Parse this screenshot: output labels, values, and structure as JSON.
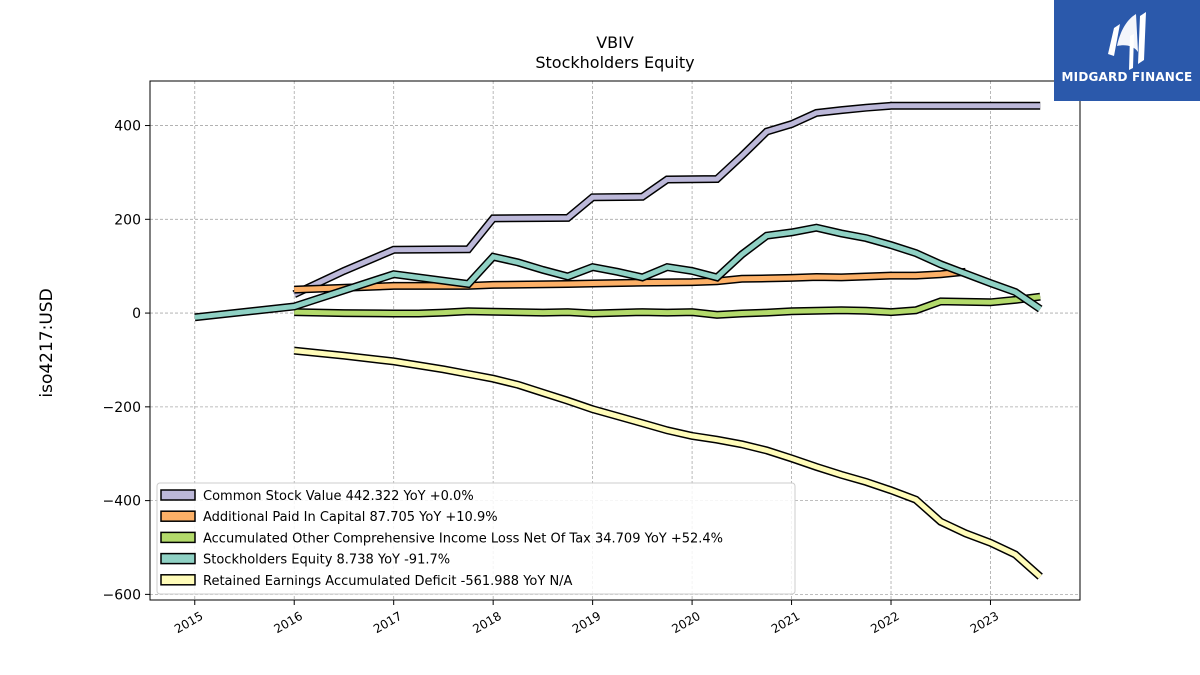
{
  "chart_data": {
    "type": "line",
    "title": "VBIV",
    "subtitle": "Stockholders  Equity",
    "xlabel": "",
    "ylabel": "iso4217:USD",
    "xlim": [
      2014.55,
      2023.9
    ],
    "ylim": [
      -612,
      495
    ],
    "x_ticks": [
      2015,
      2016,
      2017,
      2018,
      2019,
      2020,
      2021,
      2022,
      2023
    ],
    "y_ticks": [
      400,
      200,
      0,
      -200,
      -400,
      -600
    ],
    "y_tick_labels": [
      "400",
      "200",
      "0",
      "−200",
      "−400",
      "−600"
    ],
    "grid": true,
    "legend_position": "lower-left",
    "series": [
      {
        "name": "Common Stock Value  442.322 YoY +0.0%",
        "color": "#bcb8d9",
        "points": [
          [
            2016.0,
            40
          ],
          [
            2016.5,
            90
          ],
          [
            2017.0,
            135
          ],
          [
            2017.75,
            136
          ],
          [
            2018.0,
            202
          ],
          [
            2018.75,
            203
          ],
          [
            2019.0,
            247
          ],
          [
            2019.5,
            248
          ],
          [
            2019.75,
            285
          ],
          [
            2020.25,
            286
          ],
          [
            2020.5,
            335
          ],
          [
            2020.75,
            387
          ],
          [
            2021.0,
            403
          ],
          [
            2021.25,
            427
          ],
          [
            2021.5,
            433
          ],
          [
            2021.75,
            438
          ],
          [
            2022.0,
            442
          ],
          [
            2022.5,
            442
          ],
          [
            2023.0,
            442
          ],
          [
            2023.5,
            442
          ]
        ]
      },
      {
        "name": "Additional Paid In Capital  87.705 YoY +10.9%",
        "color": "#fcb067",
        "points": [
          [
            2016.0,
            50
          ],
          [
            2017.0,
            58
          ],
          [
            2017.75,
            58
          ],
          [
            2018.0,
            60
          ],
          [
            2018.75,
            62
          ],
          [
            2019.0,
            63
          ],
          [
            2019.5,
            65
          ],
          [
            2020.0,
            66
          ],
          [
            2020.25,
            68
          ],
          [
            2020.5,
            73
          ],
          [
            2020.75,
            74
          ],
          [
            2021.0,
            75
          ],
          [
            2021.25,
            77
          ],
          [
            2021.5,
            76
          ],
          [
            2021.75,
            78
          ],
          [
            2022.0,
            80
          ],
          [
            2022.25,
            80
          ],
          [
            2022.5,
            83
          ],
          [
            2022.75,
            88
          ]
        ]
      },
      {
        "name": "Accumulated Other Comprehensive Income Loss Net Of Tax  34.709 YoY +52.4%",
        "color": "#b3da6b",
        "points": [
          [
            2016.0,
            2
          ],
          [
            2016.5,
            0
          ],
          [
            2017.0,
            -1
          ],
          [
            2017.25,
            -1
          ],
          [
            2017.5,
            1
          ],
          [
            2017.75,
            4
          ],
          [
            2018.0,
            3
          ],
          [
            2018.5,
            1
          ],
          [
            2018.75,
            2
          ],
          [
            2019.0,
            -1
          ],
          [
            2019.5,
            2
          ],
          [
            2019.75,
            1
          ],
          [
            2020.0,
            2
          ],
          [
            2020.25,
            -4
          ],
          [
            2020.5,
            -1
          ],
          [
            2020.75,
            1
          ],
          [
            2021.0,
            4
          ],
          [
            2021.25,
            5
          ],
          [
            2021.5,
            6
          ],
          [
            2021.75,
            5
          ],
          [
            2022.0,
            2
          ],
          [
            2022.25,
            6
          ],
          [
            2022.5,
            25
          ],
          [
            2023.0,
            23
          ],
          [
            2023.25,
            28
          ],
          [
            2023.5,
            35
          ]
        ]
      },
      {
        "name": "Stockholders Equity  8.738 YoY -91.7%",
        "color": "#8fd1c4",
        "points": [
          [
            2015.0,
            -9
          ],
          [
            2016.0,
            14
          ],
          [
            2017.0,
            83
          ],
          [
            2017.75,
            62
          ],
          [
            2018.0,
            120
          ],
          [
            2018.25,
            108
          ],
          [
            2018.5,
            92
          ],
          [
            2018.75,
            78
          ],
          [
            2019.0,
            98
          ],
          [
            2019.25,
            88
          ],
          [
            2019.5,
            76
          ],
          [
            2019.75,
            98
          ],
          [
            2020.0,
            90
          ],
          [
            2020.25,
            76
          ],
          [
            2020.5,
            125
          ],
          [
            2020.75,
            165
          ],
          [
            2021.0,
            172
          ],
          [
            2021.25,
            182
          ],
          [
            2021.5,
            170
          ],
          [
            2021.75,
            160
          ],
          [
            2022.0,
            145
          ],
          [
            2022.25,
            128
          ],
          [
            2022.5,
            104
          ],
          [
            2022.75,
            84
          ],
          [
            2023.0,
            64
          ],
          [
            2023.25,
            45
          ],
          [
            2023.5,
            8.7
          ]
        ]
      },
      {
        "name": "Retained Earnings Accumulated Deficit  -561.988 YoY N/A",
        "color": "#fffcb9",
        "points": [
          [
            2016.0,
            -80
          ],
          [
            2016.5,
            -91
          ],
          [
            2017.0,
            -103
          ],
          [
            2017.5,
            -120
          ],
          [
            2017.75,
            -130
          ],
          [
            2018.0,
            -140
          ],
          [
            2018.25,
            -153
          ],
          [
            2018.5,
            -170
          ],
          [
            2018.75,
            -187
          ],
          [
            2019.0,
            -205
          ],
          [
            2019.25,
            -220
          ],
          [
            2019.5,
            -235
          ],
          [
            2019.75,
            -250
          ],
          [
            2020.0,
            -262
          ],
          [
            2020.25,
            -270
          ],
          [
            2020.5,
            -280
          ],
          [
            2020.75,
            -293
          ],
          [
            2021.0,
            -310
          ],
          [
            2021.25,
            -328
          ],
          [
            2021.5,
            -345
          ],
          [
            2021.75,
            -360
          ],
          [
            2022.0,
            -378
          ],
          [
            2022.25,
            -398
          ],
          [
            2022.5,
            -445
          ],
          [
            2022.75,
            -470
          ],
          [
            2023.0,
            -490
          ],
          [
            2023.25,
            -515
          ],
          [
            2023.5,
            -562
          ]
        ]
      }
    ]
  },
  "logo": {
    "text": "MIDGARD FINANCE",
    "color": "#2b59ab"
  }
}
